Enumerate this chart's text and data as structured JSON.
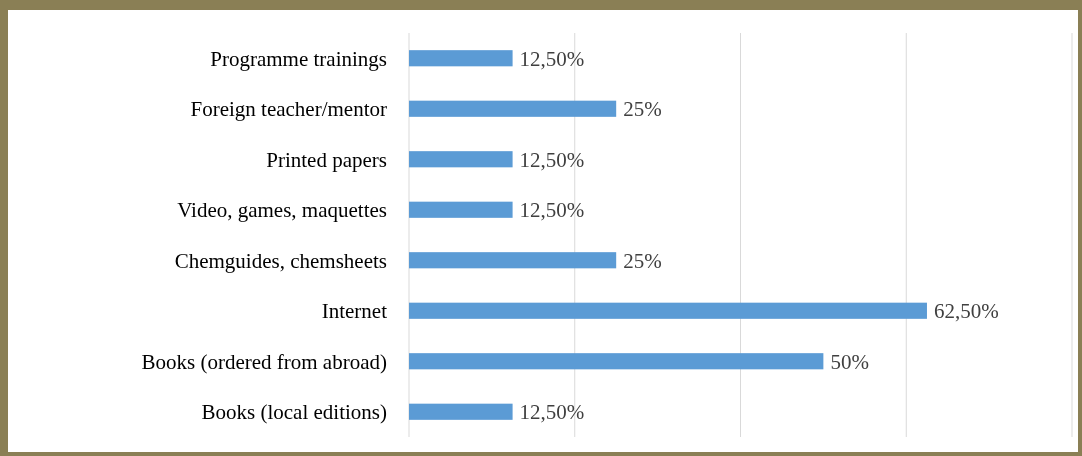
{
  "chart_data": {
    "type": "bar",
    "orientation": "horizontal",
    "categories": [
      "Programme trainings",
      "Foreign teacher/mentor",
      "Printed papers",
      "Video, games, maquettes",
      "Chemguides, chemsheets",
      "Internet",
      "Books (ordered from abroad)",
      "Books (local editions)"
    ],
    "values": [
      12.5,
      25,
      12.5,
      12.5,
      25,
      62.5,
      50,
      12.5
    ],
    "value_labels": [
      "12,50%",
      "25%",
      "12,50%",
      "12,50%",
      "25%",
      "62,50%",
      "50%",
      "12,50%"
    ],
    "color": "#5b9bd5",
    "xlim": [
      0,
      80
    ],
    "xticks": [
      {
        "value": 0,
        "label": null
      },
      {
        "value": 20,
        "label": null
      },
      {
        "value": 40,
        "label": null
      },
      {
        "value": 60,
        "label": null
      },
      {
        "value": 80,
        "label": null
      }
    ],
    "grid": "x",
    "tick_labels": "y"
  }
}
